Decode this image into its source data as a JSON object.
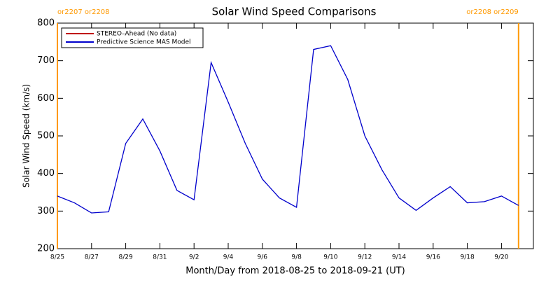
{
  "chart_data": {
    "type": "line",
    "title": "Solar Wind Speed Comparisons",
    "xlabel": "Month/Day from 2018-08-25 to 2018-09-21 (UT)",
    "ylabel": "Solar Wind Speed (km/s)",
    "x": [
      "8/25",
      "8/26",
      "8/27",
      "8/28",
      "8/29",
      "8/30",
      "8/31",
      "9/1",
      "9/2",
      "9/3",
      "9/4",
      "9/5",
      "9/6",
      "9/7",
      "9/8",
      "9/9",
      "9/10",
      "9/11",
      "9/12",
      "9/13",
      "9/14",
      "9/15",
      "9/16",
      "9/17",
      "9/18",
      "9/19",
      "9/20",
      "9/21"
    ],
    "xticks": [
      "8/25",
      "8/27",
      "8/29",
      "8/31",
      "9/2",
      "9/4",
      "9/6",
      "9/8",
      "9/10",
      "9/12",
      "9/14",
      "9/16",
      "9/18",
      "9/20"
    ],
    "series": [
      {
        "name": "STEREO–Ahead (No data)",
        "color": "#c00000",
        "values": [
          null,
          null,
          null,
          null,
          null,
          null,
          null,
          null,
          null,
          null,
          null,
          null,
          null,
          null,
          null,
          null,
          null,
          null,
          null,
          null,
          null,
          null,
          null,
          null,
          null,
          null,
          null,
          null
        ]
      },
      {
        "name": "Predictive Science MAS Model",
        "color": "#0000cc",
        "values": [
          340,
          322,
          295,
          298,
          480,
          545,
          460,
          355,
          330,
          695,
          590,
          480,
          385,
          335,
          310,
          730,
          740,
          650,
          500,
          410,
          335,
          302,
          335,
          365,
          322,
          325,
          340,
          315
        ]
      }
    ],
    "ylim": [
      200,
      800
    ],
    "yticks": [
      200,
      300,
      400,
      500,
      600,
      700,
      800
    ],
    "markers_color": "#ff9900",
    "rotation_markers": [
      {
        "x": "8/25",
        "label": "or2207 or2208"
      },
      {
        "x": "9/21",
        "label": "or2208 or2209"
      }
    ],
    "legend": "upper left"
  }
}
